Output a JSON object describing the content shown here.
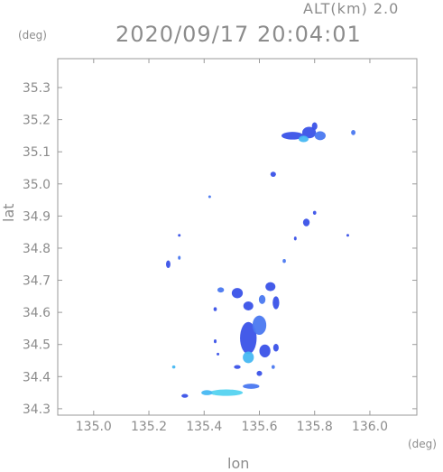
{
  "header": {
    "altitude_label": "ALT(km) 2.0",
    "datetime": "2020/09/17 20:04:01"
  },
  "axes": {
    "x_unit": "(deg)",
    "y_unit": "(deg)",
    "x_label": "lon",
    "y_label": "lat"
  },
  "chart_data": {
    "type": "scatter",
    "title": "2020/09/17 20:04:01",
    "subtitle": "ALT(km) 2.0",
    "xlabel": "lon",
    "ylabel": "lat",
    "xlim": [
      134.87,
      136.17
    ],
    "ylim": [
      34.28,
      35.39
    ],
    "grid": false,
    "legend": "none",
    "x_ticks": [
      135.0,
      135.2,
      135.4,
      135.6,
      135.8,
      136.0
    ],
    "x_tick_labels": [
      "135.0",
      "135.2",
      "135.4",
      "135.6",
      "135.8",
      "136.0"
    ],
    "y_ticks": [
      34.3,
      34.4,
      34.5,
      34.6,
      34.7,
      34.8,
      34.9,
      35.0,
      35.1,
      35.2,
      35.3
    ],
    "y_tick_labels": [
      "34.3",
      "34.4",
      "34.5",
      "34.6",
      "34.7",
      "34.8",
      "34.9",
      "35.0",
      "35.1",
      "35.2",
      "35.3"
    ],
    "colors": {
      "strong": "#3a52e8",
      "medium": "#4a78f0",
      "weak": "#47b8f2",
      "light": "#54d3f0"
    },
    "echo_cells": [
      {
        "lon": 135.72,
        "lat": 35.15,
        "rx": 0.04,
        "ry": 0.012,
        "level": "strong"
      },
      {
        "lon": 135.78,
        "lat": 35.16,
        "rx": 0.025,
        "ry": 0.018,
        "level": "strong"
      },
      {
        "lon": 135.82,
        "lat": 35.15,
        "rx": 0.02,
        "ry": 0.014,
        "level": "medium"
      },
      {
        "lon": 135.8,
        "lat": 35.18,
        "rx": 0.01,
        "ry": 0.012,
        "level": "strong"
      },
      {
        "lon": 135.76,
        "lat": 35.14,
        "rx": 0.018,
        "ry": 0.01,
        "level": "weak"
      },
      {
        "lon": 135.94,
        "lat": 35.16,
        "rx": 0.008,
        "ry": 0.008,
        "level": "medium"
      },
      {
        "lon": 135.65,
        "lat": 35.03,
        "rx": 0.01,
        "ry": 0.008,
        "level": "strong"
      },
      {
        "lon": 135.77,
        "lat": 34.88,
        "rx": 0.012,
        "ry": 0.012,
        "level": "strong"
      },
      {
        "lon": 135.8,
        "lat": 34.91,
        "rx": 0.006,
        "ry": 0.006,
        "level": "strong"
      },
      {
        "lon": 135.92,
        "lat": 34.84,
        "rx": 0.004,
        "ry": 0.004,
        "level": "strong"
      },
      {
        "lon": 135.27,
        "lat": 34.75,
        "rx": 0.008,
        "ry": 0.012,
        "level": "strong"
      },
      {
        "lon": 135.31,
        "lat": 34.84,
        "rx": 0.004,
        "ry": 0.004,
        "level": "strong"
      },
      {
        "lon": 135.31,
        "lat": 34.77,
        "rx": 0.004,
        "ry": 0.006,
        "level": "medium"
      },
      {
        "lon": 135.42,
        "lat": 34.96,
        "rx": 0.003,
        "ry": 0.003,
        "level": "medium"
      },
      {
        "lon": 135.69,
        "lat": 34.76,
        "rx": 0.006,
        "ry": 0.006,
        "level": "medium"
      },
      {
        "lon": 135.73,
        "lat": 34.83,
        "rx": 0.004,
        "ry": 0.006,
        "level": "strong"
      },
      {
        "lon": 135.46,
        "lat": 34.67,
        "rx": 0.012,
        "ry": 0.008,
        "level": "medium"
      },
      {
        "lon": 135.44,
        "lat": 34.61,
        "rx": 0.006,
        "ry": 0.006,
        "level": "strong"
      },
      {
        "lon": 135.52,
        "lat": 34.66,
        "rx": 0.02,
        "ry": 0.016,
        "level": "strong"
      },
      {
        "lon": 135.56,
        "lat": 34.62,
        "rx": 0.018,
        "ry": 0.014,
        "level": "strong"
      },
      {
        "lon": 135.61,
        "lat": 34.64,
        "rx": 0.012,
        "ry": 0.014,
        "level": "medium"
      },
      {
        "lon": 135.64,
        "lat": 34.68,
        "rx": 0.018,
        "ry": 0.014,
        "level": "strong"
      },
      {
        "lon": 135.66,
        "lat": 34.63,
        "rx": 0.012,
        "ry": 0.02,
        "level": "strong"
      },
      {
        "lon": 135.56,
        "lat": 34.52,
        "rx": 0.03,
        "ry": 0.05,
        "level": "strong"
      },
      {
        "lon": 135.6,
        "lat": 34.56,
        "rx": 0.025,
        "ry": 0.03,
        "level": "medium"
      },
      {
        "lon": 135.62,
        "lat": 34.48,
        "rx": 0.02,
        "ry": 0.02,
        "level": "strong"
      },
      {
        "lon": 135.56,
        "lat": 34.46,
        "rx": 0.02,
        "ry": 0.018,
        "level": "weak"
      },
      {
        "lon": 135.66,
        "lat": 34.49,
        "rx": 0.01,
        "ry": 0.012,
        "level": "strong"
      },
      {
        "lon": 135.44,
        "lat": 34.51,
        "rx": 0.005,
        "ry": 0.006,
        "level": "strong"
      },
      {
        "lon": 135.45,
        "lat": 34.47,
        "rx": 0.004,
        "ry": 0.004,
        "level": "strong"
      },
      {
        "lon": 135.52,
        "lat": 34.43,
        "rx": 0.012,
        "ry": 0.006,
        "level": "strong"
      },
      {
        "lon": 135.6,
        "lat": 34.41,
        "rx": 0.01,
        "ry": 0.008,
        "level": "strong"
      },
      {
        "lon": 135.65,
        "lat": 34.43,
        "rx": 0.006,
        "ry": 0.006,
        "level": "medium"
      },
      {
        "lon": 135.29,
        "lat": 34.43,
        "rx": 0.006,
        "ry": 0.005,
        "level": "weak"
      },
      {
        "lon": 135.57,
        "lat": 34.37,
        "rx": 0.03,
        "ry": 0.008,
        "level": "medium"
      },
      {
        "lon": 135.48,
        "lat": 34.35,
        "rx": 0.06,
        "ry": 0.01,
        "level": "light"
      },
      {
        "lon": 135.33,
        "lat": 34.34,
        "rx": 0.012,
        "ry": 0.006,
        "level": "strong"
      },
      {
        "lon": 135.41,
        "lat": 34.35,
        "rx": 0.02,
        "ry": 0.008,
        "level": "weak"
      }
    ]
  }
}
